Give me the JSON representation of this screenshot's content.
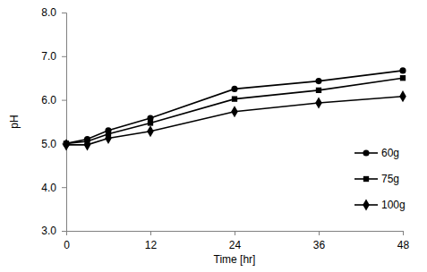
{
  "chart_data": {
    "type": "line",
    "x_label": "Time [hr]",
    "y_label": "pH",
    "x": [
      0,
      3,
      6,
      12,
      24,
      36,
      48
    ],
    "series": [
      {
        "name": "60g",
        "color": "#000000",
        "marker": "circle",
        "line_style": "solid",
        "values": [
          5.0,
          5.1,
          5.3,
          5.58,
          6.25,
          6.43,
          6.67
        ]
      },
      {
        "name": "75g",
        "color": "#000000",
        "marker": "square",
        "line_style": "solid",
        "values": [
          5.0,
          5.05,
          5.22,
          5.47,
          6.02,
          6.22,
          6.5
        ]
      },
      {
        "name": "100g",
        "color": "#000000",
        "marker": "diamond",
        "line_style": "solid",
        "values": [
          4.97,
          4.97,
          5.12,
          5.28,
          5.73,
          5.93,
          6.08
        ]
      }
    ],
    "xlim": [
      0,
      48
    ],
    "xticks": [
      0,
      12,
      24,
      36,
      48
    ],
    "ylim": [
      3,
      8
    ],
    "yticks": [
      {
        "value": 3,
        "label": "3.0"
      },
      {
        "value": 4,
        "label": "4.0"
      },
      {
        "value": 5,
        "label": "5.0"
      },
      {
        "value": 6,
        "label": "6.0"
      },
      {
        "value": 7,
        "label": "7.0"
      },
      {
        "value": 8,
        "label": "8.0"
      }
    ],
    "grid": false,
    "legend": "lower right"
  }
}
